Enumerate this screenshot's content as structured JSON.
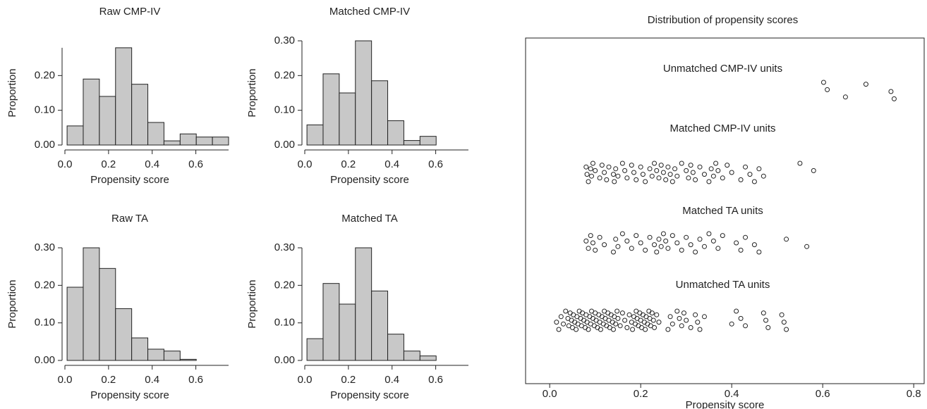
{
  "chart_data": [
    {
      "type": "histogram",
      "title": "Raw CMP-IV",
      "xlabel": "Propensity score",
      "ylabel": "Proportion",
      "color": "#c8c8c8",
      "bins": [
        0.01,
        0.084,
        0.158,
        0.232,
        0.306,
        0.38,
        0.454,
        0.528,
        0.602,
        0.676,
        0.75
      ],
      "values": [
        0.055,
        0.19,
        0.14,
        0.28,
        0.175,
        0.065,
        0.012,
        0.032,
        0.023,
        0.023
      ],
      "xlim": [
        0,
        0.75
      ],
      "ylim": [
        0,
        0.28
      ],
      "xticks": [
        {
          "value": 0,
          "label": "0.0"
        },
        0.2,
        0.4,
        0.6
      ],
      "yticks": [
        {
          "value": 0,
          "label": "0.00"
        },
        {
          "value": 0.1,
          "label": "0.10"
        },
        {
          "value": 0.2,
          "label": "0.20"
        }
      ]
    },
    {
      "type": "histogram",
      "title": "Matched CMP-IV",
      "xlabel": "Propensity score",
      "ylabel": "Proportion",
      "color": "#c8c8c8",
      "bins": [
        0.01,
        0.084,
        0.158,
        0.232,
        0.306,
        0.38,
        0.454,
        0.528,
        0.602
      ],
      "values": [
        0.058,
        0.205,
        0.15,
        0.3,
        0.185,
        0.07,
        0.013,
        0.025
      ],
      "xlim": [
        0,
        0.75
      ],
      "ylim": [
        0,
        0.3
      ],
      "xticks": [
        {
          "value": 0,
          "label": "0.0"
        },
        0.2,
        0.4,
        0.6
      ],
      "yticks": [
        {
          "value": 0,
          "label": "0.00"
        },
        {
          "value": 0.1,
          "label": "0.10"
        },
        {
          "value": 0.2,
          "label": "0.20"
        },
        {
          "value": 0.3,
          "label": "0.30"
        }
      ]
    },
    {
      "type": "histogram",
      "title": "Raw TA",
      "xlabel": "Propensity score",
      "ylabel": "Proportion",
      "color": "#c8c8c8",
      "bins": [
        0.01,
        0.084,
        0.158,
        0.232,
        0.306,
        0.38,
        0.454,
        0.528,
        0.602
      ],
      "values": [
        0.195,
        0.3,
        0.245,
        0.138,
        0.06,
        0.03,
        0.025,
        0.003
      ],
      "xlim": [
        0,
        0.75
      ],
      "ylim": [
        0,
        0.3
      ],
      "xticks": [
        {
          "value": 0,
          "label": "0.0"
        },
        0.2,
        0.4,
        0.6
      ],
      "yticks": [
        {
          "value": 0,
          "label": "0.00"
        },
        {
          "value": 0.1,
          "label": "0.10"
        },
        {
          "value": 0.2,
          "label": "0.20"
        },
        {
          "value": 0.3,
          "label": "0.30"
        }
      ]
    },
    {
      "type": "histogram",
      "title": "Matched TA",
      "xlabel": "Propensity score",
      "ylabel": "Proportion",
      "color": "#c8c8c8",
      "bins": [
        0.01,
        0.084,
        0.158,
        0.232,
        0.306,
        0.38,
        0.454,
        0.528,
        0.602
      ],
      "values": [
        0.058,
        0.205,
        0.15,
        0.3,
        0.185,
        0.07,
        0.025,
        0.012
      ],
      "xlim": [
        0,
        0.75
      ],
      "ylim": [
        0,
        0.3
      ],
      "xticks": [
        {
          "value": 0,
          "label": "0.0"
        },
        0.2,
        0.4,
        0.6
      ],
      "yticks": [
        {
          "value": 0,
          "label": "0.00"
        },
        {
          "value": 0.1,
          "label": "0.10"
        },
        {
          "value": 0.2,
          "label": "0.20"
        },
        {
          "value": 0.3,
          "label": "0.30"
        }
      ]
    },
    {
      "type": "strip",
      "title": "Distribution of propensity scores",
      "xlabel": "Propensity score",
      "color": "#222222",
      "xlim": [
        -0.053,
        0.823
      ],
      "xticks": [
        {
          "value": 0,
          "label": "0.0"
        },
        0.2,
        0.4,
        0.6,
        0.8
      ],
      "series": [
        {
          "name": "Unmatched CMP-IV units",
          "values": [
            0.602,
            0.61,
            0.65,
            0.695,
            0.75,
            0.757
          ]
        },
        {
          "name": "Matched CMP-IV units",
          "values": [
            0.08,
            0.082,
            0.085,
            0.09,
            0.092,
            0.095,
            0.1,
            0.11,
            0.115,
            0.12,
            0.125,
            0.13,
            0.14,
            0.142,
            0.145,
            0.15,
            0.16,
            0.165,
            0.17,
            0.18,
            0.185,
            0.19,
            0.2,
            0.205,
            0.21,
            0.22,
            0.225,
            0.23,
            0.235,
            0.24,
            0.245,
            0.25,
            0.255,
            0.26,
            0.265,
            0.27,
            0.275,
            0.28,
            0.29,
            0.3,
            0.305,
            0.31,
            0.315,
            0.32,
            0.33,
            0.34,
            0.35,
            0.355,
            0.36,
            0.365,
            0.37,
            0.38,
            0.39,
            0.4,
            0.42,
            0.43,
            0.44,
            0.45,
            0.46,
            0.47,
            0.55,
            0.58
          ]
        },
        {
          "name": "Matched TA units",
          "values": [
            0.08,
            0.085,
            0.09,
            0.095,
            0.1,
            0.11,
            0.12,
            0.14,
            0.145,
            0.15,
            0.16,
            0.17,
            0.18,
            0.19,
            0.2,
            0.21,
            0.22,
            0.23,
            0.235,
            0.24,
            0.245,
            0.25,
            0.255,
            0.26,
            0.27,
            0.28,
            0.29,
            0.3,
            0.31,
            0.32,
            0.33,
            0.34,
            0.35,
            0.36,
            0.37,
            0.38,
            0.41,
            0.42,
            0.43,
            0.45,
            0.46,
            0.52,
            0.565
          ]
        },
        {
          "name": "Unmatched TA units",
          "values": [
            0.015,
            0.02,
            0.025,
            0.03,
            0.035,
            0.04,
            0.042,
            0.045,
            0.048,
            0.05,
            0.052,
            0.055,
            0.058,
            0.06,
            0.062,
            0.065,
            0.068,
            0.07,
            0.072,
            0.075,
            0.078,
            0.08,
            0.082,
            0.085,
            0.088,
            0.09,
            0.092,
            0.095,
            0.098,
            0.1,
            0.102,
            0.105,
            0.108,
            0.11,
            0.112,
            0.115,
            0.118,
            0.12,
            0.122,
            0.125,
            0.128,
            0.13,
            0.132,
            0.135,
            0.138,
            0.14,
            0.142,
            0.145,
            0.148,
            0.15,
            0.155,
            0.16,
            0.165,
            0.17,
            0.175,
            0.18,
            0.182,
            0.185,
            0.188,
            0.19,
            0.192,
            0.195,
            0.198,
            0.2,
            0.202,
            0.205,
            0.208,
            0.21,
            0.212,
            0.215,
            0.218,
            0.22,
            0.222,
            0.225,
            0.228,
            0.23,
            0.235,
            0.24,
            0.26,
            0.265,
            0.27,
            0.28,
            0.285,
            0.29,
            0.295,
            0.3,
            0.31,
            0.32,
            0.325,
            0.33,
            0.34,
            0.4,
            0.41,
            0.42,
            0.43,
            0.47,
            0.475,
            0.48,
            0.51,
            0.515,
            0.52
          ]
        }
      ]
    }
  ]
}
